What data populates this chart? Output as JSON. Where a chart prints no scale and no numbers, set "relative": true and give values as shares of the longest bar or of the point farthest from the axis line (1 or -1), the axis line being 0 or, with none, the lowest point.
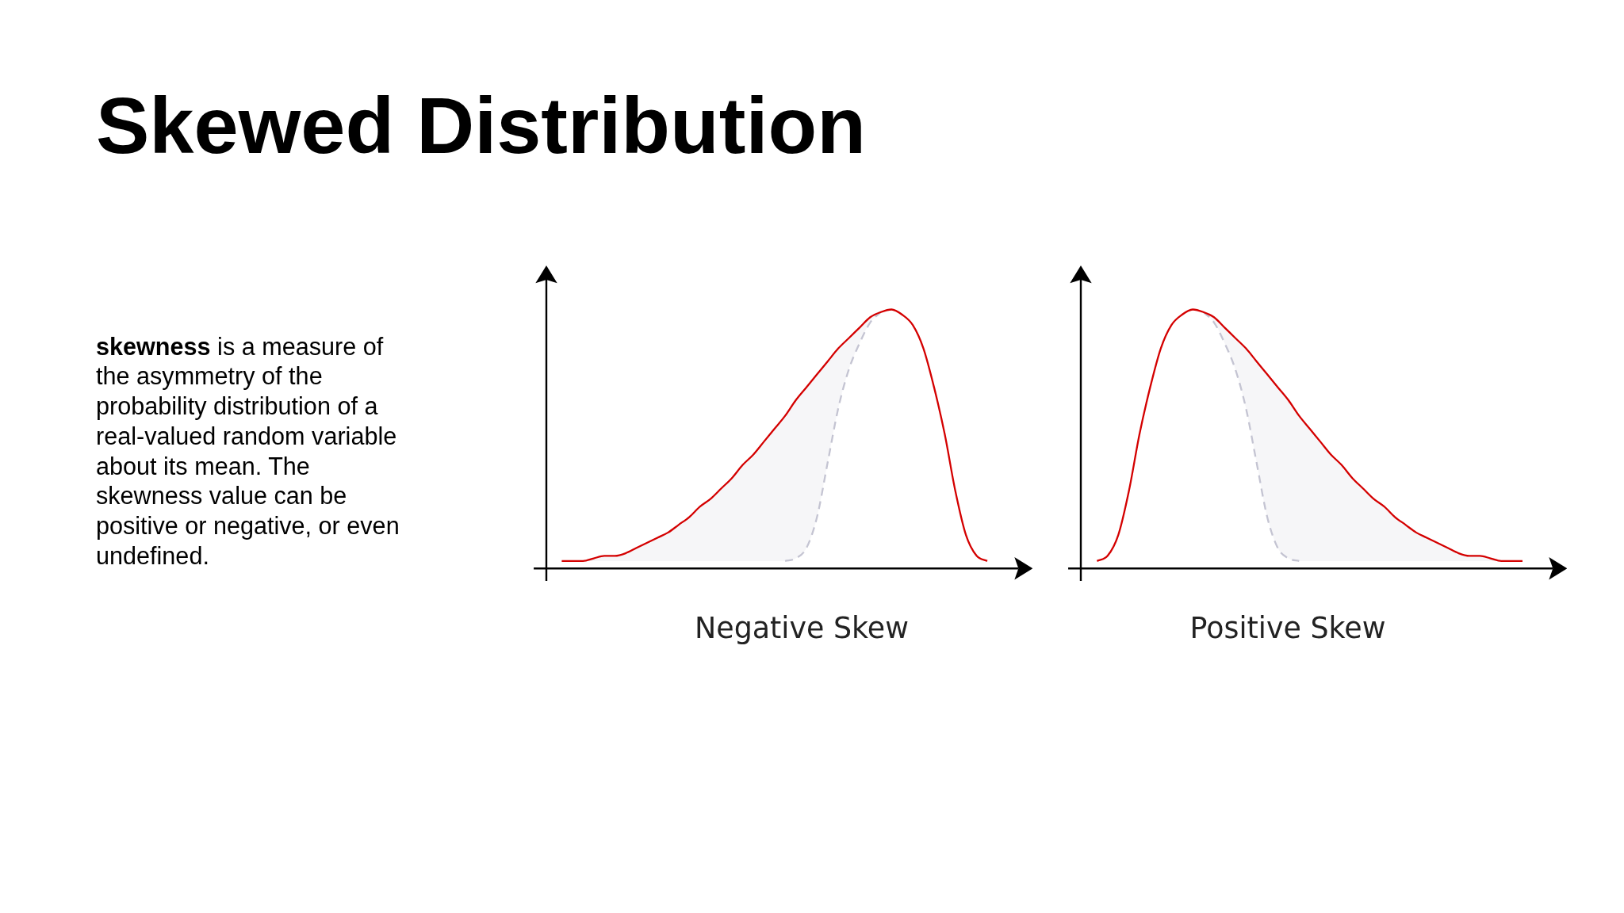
{
  "chart_data": [
    {
      "type": "other",
      "title": "Skewed Distribution",
      "annotations": [
        "skewness is a measure of the asymmetry of the probability distribution of a real-valued random variable about its mean. The skewness value can be positive or negative, or even undefined."
      ]
    },
    {
      "type": "line",
      "relative": true,
      "xlabel": "Negative Skew",
      "categories": [
        null,
        null,
        null,
        null,
        null,
        null,
        null,
        null,
        null,
        null,
        null,
        null,
        null,
        null,
        null,
        null,
        null,
        null,
        null,
        null,
        null,
        null,
        null,
        null,
        null,
        null,
        null,
        null,
        null,
        null,
        null,
        null,
        null,
        null,
        null,
        null,
        null,
        null,
        null,
        null,
        null
      ],
      "series": [
        {
          "color": "#d40000",
          "values": [
            0.03,
            0.03,
            0.03,
            0.04,
            0.05,
            0.05,
            0.06,
            0.08,
            0.1,
            0.12,
            0.14,
            0.17,
            0.2,
            0.24,
            0.27,
            0.31,
            0.35,
            0.4,
            0.44,
            0.49,
            0.54,
            0.59,
            0.65,
            0.7,
            0.75,
            0.8,
            0.85,
            0.89,
            0.93,
            0.97,
            0.99,
            1,
            0.98,
            0.94,
            0.85,
            0.7,
            0.52,
            0.3,
            0.13,
            0.05,
            0.03
          ]
        },
        {
          "color": "#c4c4d2",
          "line_style": "dashed",
          "values": [
            null,
            null,
            null,
            null,
            null,
            null,
            null,
            null,
            null,
            null,
            null,
            null,
            null,
            null,
            null,
            null,
            null,
            null,
            null,
            null,
            null,
            0.03,
            0.04,
            0.08,
            0.2,
            0.41,
            0.62,
            0.77,
            0.87,
            0.95,
            0.99,
            null,
            null,
            null,
            null,
            null,
            null,
            null,
            null,
            null,
            null
          ],
          "lower": [
            0.03,
            0.03,
            0.03,
            0.03,
            0.03,
            0.03,
            0.03,
            0.03,
            0.03,
            0.03,
            0.03,
            0.03,
            0.03,
            0.03,
            0.03,
            0.03,
            0.03,
            0.03,
            0.03,
            0.03,
            0.03,
            0.03,
            0.04,
            0.08,
            0.2,
            0.41,
            0.62,
            0.77,
            0.87,
            0.95,
            0.99,
            null,
            null,
            null,
            null,
            null,
            null,
            null,
            null,
            null,
            null
          ],
          "upper": [
            0.03,
            0.03,
            0.03,
            0.04,
            0.05,
            0.05,
            0.06,
            0.08,
            0.1,
            0.12,
            0.14,
            0.17,
            0.2,
            0.24,
            0.27,
            0.31,
            0.35,
            0.4,
            0.44,
            0.49,
            0.54,
            0.59,
            0.65,
            0.7,
            0.75,
            0.8,
            0.85,
            0.89,
            0.93,
            0.97,
            0.99,
            null,
            null,
            null,
            null,
            null,
            null,
            null,
            null,
            null,
            null
          ]
        }
      ]
    },
    {
      "type": "line",
      "relative": true,
      "xlabel": "Positive Skew",
      "categories": [
        null,
        null,
        null,
        null,
        null,
        null,
        null,
        null,
        null,
        null,
        null,
        null,
        null,
        null,
        null,
        null,
        null,
        null,
        null,
        null,
        null,
        null,
        null,
        null,
        null,
        null,
        null,
        null,
        null,
        null,
        null,
        null,
        null,
        null,
        null,
        null,
        null,
        null,
        null,
        null,
        null
      ],
      "series": [
        {
          "color": "#d40000",
          "values": [
            0.03,
            0.05,
            0.13,
            0.3,
            0.52,
            0.7,
            0.85,
            0.94,
            0.98,
            1,
            0.99,
            0.97,
            0.93,
            0.89,
            0.85,
            0.8,
            0.75,
            0.7,
            0.65,
            0.59,
            0.54,
            0.49,
            0.44,
            0.4,
            0.35,
            0.31,
            0.27,
            0.24,
            0.2,
            0.17,
            0.14,
            0.12,
            0.1,
            0.08,
            0.06,
            0.05,
            0.05,
            0.04,
            0.03,
            0.03,
            0.03
          ]
        },
        {
          "color": "#c4c4d2",
          "line_style": "dashed",
          "values": [
            null,
            null,
            null,
            null,
            null,
            null,
            null,
            null,
            null,
            null,
            0.99,
            0.95,
            0.87,
            0.77,
            0.62,
            0.41,
            0.2,
            0.08,
            0.04,
            0.03,
            null,
            null,
            null,
            null,
            null,
            null,
            null,
            null,
            null,
            null,
            null,
            null,
            null,
            null,
            null,
            null,
            null,
            null,
            null,
            null,
            null
          ],
          "lower": [
            null,
            null,
            null,
            null,
            null,
            null,
            null,
            null,
            null,
            null,
            0.99,
            0.95,
            0.87,
            0.77,
            0.62,
            0.41,
            0.2,
            0.08,
            0.04,
            0.03,
            0.03,
            0.03,
            0.03,
            0.03,
            0.03,
            0.03,
            0.03,
            0.03,
            0.03,
            0.03,
            0.03,
            0.03,
            0.03,
            0.03,
            0.03,
            0.03,
            0.03,
            0.03,
            0.03,
            0.03,
            0.03
          ],
          "upper": [
            null,
            null,
            null,
            null,
            null,
            null,
            null,
            null,
            null,
            null,
            0.99,
            0.97,
            0.93,
            0.89,
            0.85,
            0.8,
            0.75,
            0.7,
            0.65,
            0.59,
            0.54,
            0.49,
            0.44,
            0.4,
            0.35,
            0.31,
            0.27,
            0.24,
            0.2,
            0.17,
            0.14,
            0.12,
            0.1,
            0.08,
            0.06,
            0.05,
            0.05,
            0.04,
            0.03,
            0.03,
            0.03
          ]
        }
      ]
    }
  ]
}
